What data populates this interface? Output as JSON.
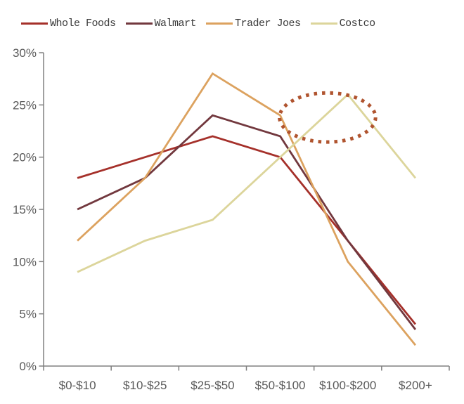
{
  "chart_data": {
    "type": "line",
    "title": "",
    "xlabel": "",
    "ylabel": "",
    "categories": [
      "$0-$10",
      "$10-$25",
      "$25-$50",
      "$50-$100",
      "$100-$200",
      "$200+"
    ],
    "series": [
      {
        "name": "Whole Foods",
        "color": "#a5302a",
        "values": [
          18,
          20,
          22,
          20,
          12,
          4
        ]
      },
      {
        "name": "Walmart",
        "color": "#72383e",
        "values": [
          15,
          18,
          24,
          22,
          12,
          3.5
        ]
      },
      {
        "name": "Trader Joes",
        "color": "#dca25f",
        "values": [
          12,
          18,
          28,
          24,
          10,
          2
        ]
      },
      {
        "name": "Costco",
        "color": "#dcd59b",
        "values": [
          9,
          12,
          14,
          20,
          26,
          18
        ]
      }
    ],
    "ylim": [
      0,
      30
    ],
    "ytick_step": 5,
    "ytick_labels": [
      "0%",
      "5%",
      "10%",
      "15%",
      "20%",
      "25%",
      "30%"
    ],
    "grid": false,
    "legend_position": "top",
    "axis_color": "#808080",
    "tick_label_color": "#595959",
    "legend_text_color": "#3a3a3a",
    "annotation": {
      "shape": "dotted-ellipse",
      "color": "#b0542f",
      "center_category_index": 3.7,
      "center_value": 23.8,
      "radius_category_units": 0.71,
      "radius_value_units": 2.35
    }
  }
}
